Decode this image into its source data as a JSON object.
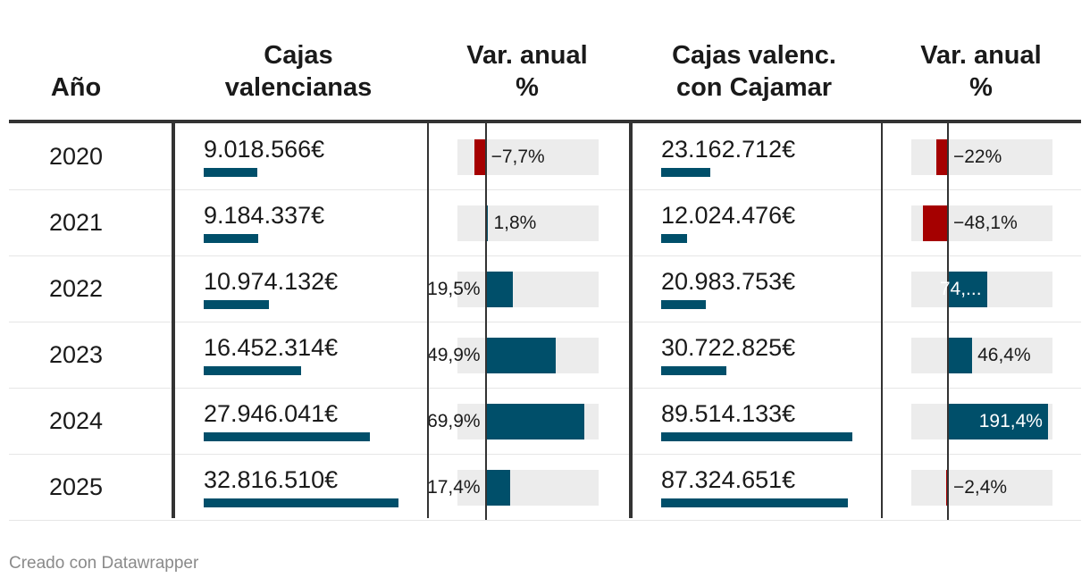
{
  "chart_data": {
    "type": "table",
    "columns": [
      "Año",
      "Cajas valencianas",
      "Var. anual %",
      "Cajas valenc. con Cajamar",
      "Var. anual %"
    ],
    "headers": {
      "year": [
        "Año"
      ],
      "cajas": [
        "Cajas",
        "valencianas"
      ],
      "var1": [
        "Var. anual",
        "%"
      ],
      "cajamar": [
        "Cajas valenc.",
        "con Cajamar"
      ],
      "var2": [
        "Var. anual",
        "%"
      ]
    },
    "rows": [
      {
        "year": "2020",
        "cajas": "9.018.566€",
        "cajas_value": 9018566,
        "var1": "−7,7%",
        "var1_value": -7.7,
        "cajamar": "23.162.712€",
        "cajamar_value": 23162712,
        "var2": "−22%",
        "var2_value": -22
      },
      {
        "year": "2021",
        "cajas": "9.184.337€",
        "cajas_value": 9184337,
        "var1": "1,8%",
        "var1_value": 1.8,
        "cajamar": "12.024.476€",
        "cajamar_value": 12024476,
        "var2": "−48,1%",
        "var2_value": -48.1
      },
      {
        "year": "2022",
        "cajas": "10.974.132€",
        "cajas_value": 10974132,
        "var1": "19,5%",
        "var1_value": 19.5,
        "cajamar": "20.983.753€",
        "cajamar_value": 20983753,
        "var2": "74,...",
        "var2_value": 74.5
      },
      {
        "year": "2023",
        "cajas": "16.452.314€",
        "cajas_value": 16452314,
        "var1": "49,9%",
        "var1_value": 49.9,
        "cajamar": "30.722.825€",
        "cajamar_value": 30722825,
        "var2": "46,4%",
        "var2_value": 46.4
      },
      {
        "year": "2024",
        "cajas": "27.946.041€",
        "cajas_value": 27946041,
        "var1": "69,9%",
        "var1_value": 69.9,
        "cajamar": "89.514.133€",
        "cajamar_value": 89514133,
        "var2": "191,4%",
        "var2_value": 191.4
      },
      {
        "year": "2025",
        "cajas": "32.816.510€",
        "cajas_value": 32816510,
        "var1": "17,4%",
        "var1_value": 17.4,
        "cajamar": "87.324.651€",
        "cajamar_value": 87324651,
        "var2": "−2,4%",
        "var2_value": -2.4
      }
    ],
    "var1_range": [
      -20,
      80
    ],
    "var2_range": [
      -70,
      200
    ]
  },
  "colors": {
    "positive": "#004f6a",
    "negative": "#a50000",
    "track": "#ececec",
    "rule": "#333333"
  },
  "footer": "Creado con Datawrapper"
}
